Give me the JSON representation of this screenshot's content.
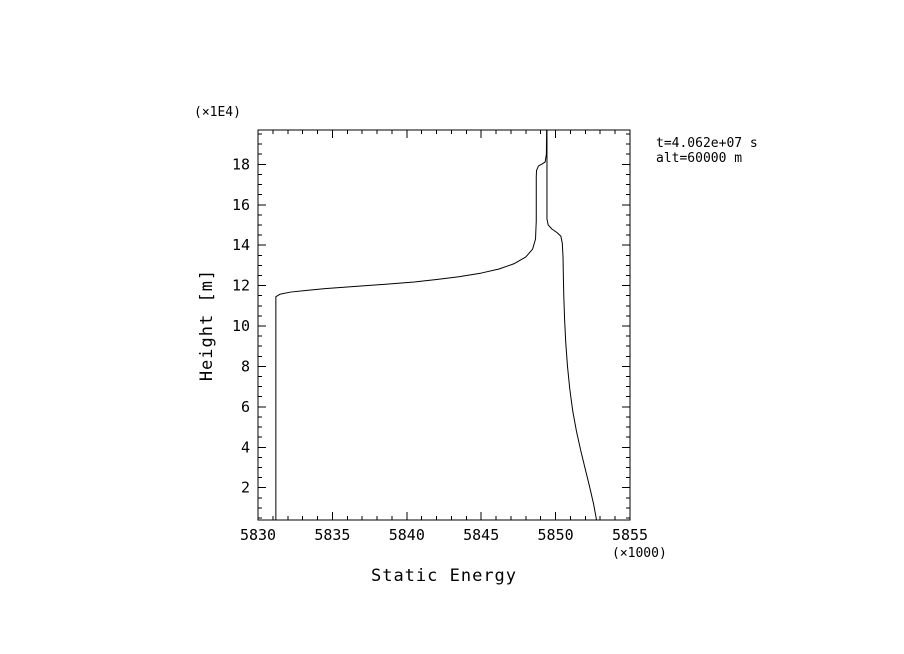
{
  "page": {
    "background": "#ffffff",
    "plot_line_color": "#000000",
    "text_color": "#000000"
  },
  "axes": {
    "x_label": "Static Energy",
    "x_scale_note": "(×1000)",
    "y_label": "Height [m]",
    "y_scale_note": "(×1E4)"
  },
  "annotations": {
    "line1": "t=4.062e+07 s",
    "line2": "alt=60000 m"
  },
  "chart_data": {
    "type": "line",
    "title": "",
    "xlabel": "Static Energy",
    "ylabel": "Height [m]",
    "x_units_note": "(×1000)",
    "y_units_note": "(×1E4)",
    "xlim": [
      5830,
      5855
    ],
    "ylim": [
      0.4,
      19.7
    ],
    "x_major_ticks": [
      5830,
      5835,
      5840,
      5845,
      5850,
      5855
    ],
    "x_minor_step": 1,
    "y_major_ticks": [
      2,
      4,
      6,
      8,
      10,
      12,
      14,
      16,
      18
    ],
    "y_minor_step": 0.5,
    "grid": false,
    "legend": "none",
    "line_color": "#000000",
    "annotations": [
      "t=4.062e+07 s",
      "alt=60000 m"
    ],
    "series": [
      {
        "name": "static-energy-profile-lower",
        "points": [
          [
            5831.2,
            0.4
          ],
          [
            5831.2,
            11.45
          ],
          [
            5831.5,
            11.58
          ],
          [
            5832.2,
            11.68
          ],
          [
            5833.2,
            11.76
          ],
          [
            5834.5,
            11.85
          ],
          [
            5836.0,
            11.93
          ],
          [
            5837.5,
            12.01
          ],
          [
            5839.0,
            12.09
          ],
          [
            5840.5,
            12.18
          ],
          [
            5842.0,
            12.3
          ],
          [
            5843.5,
            12.44
          ],
          [
            5845.0,
            12.62
          ],
          [
            5846.2,
            12.82
          ],
          [
            5847.2,
            13.08
          ],
          [
            5848.0,
            13.42
          ],
          [
            5848.45,
            13.8
          ],
          [
            5848.65,
            14.3
          ],
          [
            5848.7,
            15.2
          ],
          [
            5848.7,
            16.4
          ],
          [
            5848.7,
            17.4
          ],
          [
            5848.72,
            17.7
          ],
          [
            5848.85,
            17.92
          ],
          [
            5849.1,
            18.02
          ],
          [
            5849.3,
            18.12
          ],
          [
            5849.38,
            18.5
          ],
          [
            5849.4,
            19.7
          ]
        ]
      },
      {
        "name": "static-energy-profile-upper",
        "points": [
          [
            5849.42,
            19.7
          ],
          [
            5849.42,
            15.3
          ],
          [
            5849.5,
            15.0
          ],
          [
            5849.75,
            14.8
          ],
          [
            5850.1,
            14.62
          ],
          [
            5850.35,
            14.45
          ],
          [
            5850.45,
            14.1
          ],
          [
            5850.5,
            13.4
          ],
          [
            5850.52,
            12.5
          ],
          [
            5850.55,
            11.5
          ],
          [
            5850.6,
            10.4
          ],
          [
            5850.68,
            9.2
          ],
          [
            5850.8,
            8.0
          ],
          [
            5850.95,
            6.9
          ],
          [
            5851.15,
            5.8
          ],
          [
            5851.4,
            4.8
          ],
          [
            5851.7,
            3.8
          ],
          [
            5852.0,
            2.9
          ],
          [
            5852.3,
            2.0
          ],
          [
            5852.55,
            1.2
          ],
          [
            5852.7,
            0.6
          ],
          [
            5852.75,
            0.4
          ]
        ]
      }
    ]
  }
}
